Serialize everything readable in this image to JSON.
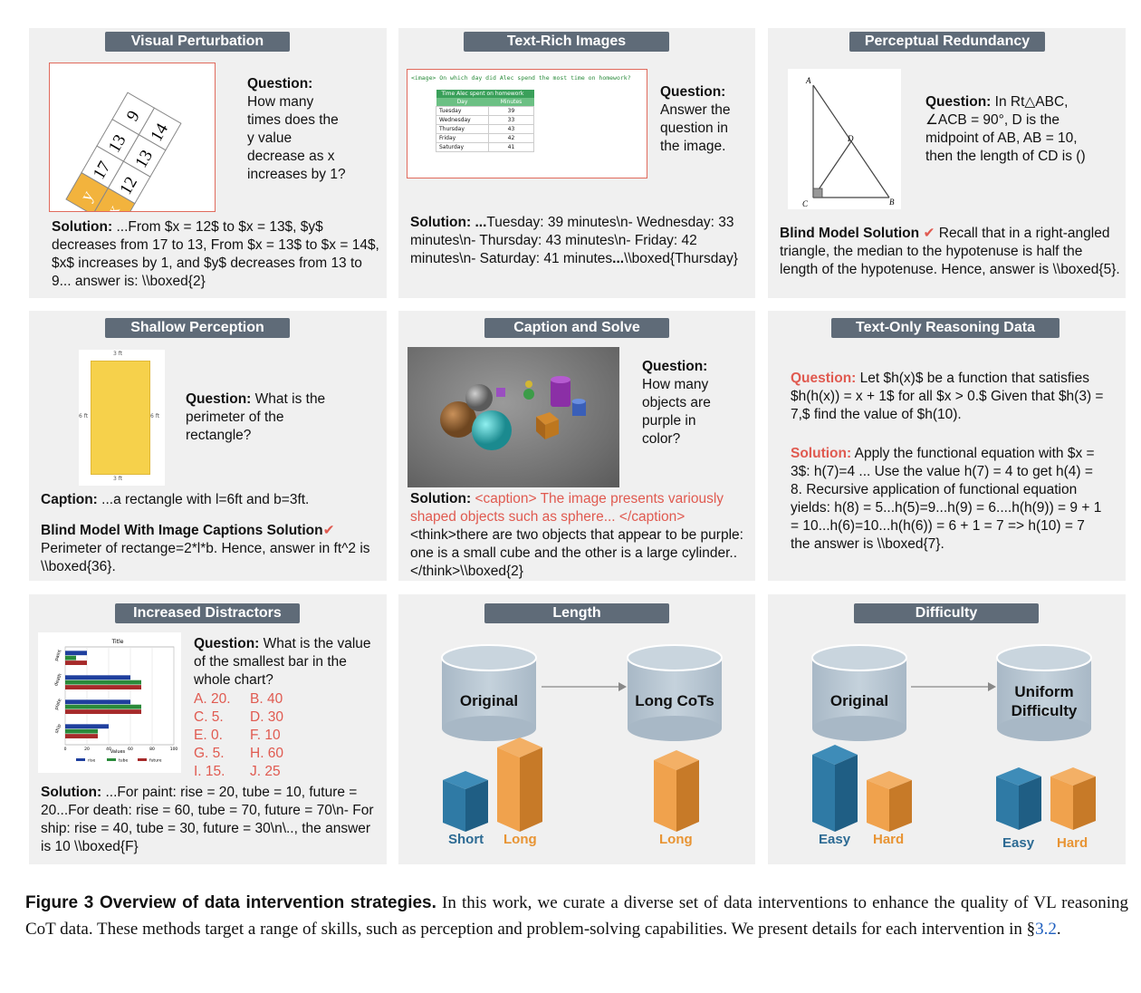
{
  "panels": {
    "visual_perturbation": {
      "title": "Visual Perturbation",
      "question_label": "Question:",
      "question_text": "How many times does the y value decrease as x increases by 1?",
      "solution_label": "Solution:",
      "solution_text": " ...From $x = 12$ to $x = 13$, $y$ decreases from 17 to 13, From $x = 13$ to $x = 14$, $x$ increases by 1, and $y$ decreases from 13 to 9... answer is: \\\\boxed{2}",
      "table": {
        "row_x": [
          "x",
          "12",
          "13",
          "14"
        ],
        "row_y": [
          "y",
          "17",
          "13",
          "9"
        ]
      }
    },
    "text_rich": {
      "title": "Text-Rich Images",
      "image_prompt": "<image> On which day did Alec spend the most time on homework?",
      "image_table_title": "Time Alec spent on homework",
      "image_table_headers": [
        "Day",
        "Minutes"
      ],
      "image_table_rows": [
        [
          "Tuesday",
          "39"
        ],
        [
          "Wednesday",
          "33"
        ],
        [
          "Thursday",
          "43"
        ],
        [
          "Friday",
          "42"
        ],
        [
          "Saturday",
          "41"
        ]
      ],
      "question_label": "Question:",
      "question_text": "Answer the question in the image.",
      "solution_label": "Solution: ...",
      "solution_text": "Tuesday: 39 minutes\\n- Wednesday: 33 minutes\\n- Thursday: 43 minutes\\n- Friday: 42 minutes\\n- Saturday: 41 minutes",
      "solution_tail_bold": "...",
      "solution_tail": "\\\\boxed{Thursday}"
    },
    "perceptual_redundancy": {
      "title": "Perceptual Redundancy",
      "question_label": "Question:",
      "question_text": " In Rt△ABC, ∠ACB = 90°, D is the midpoint of AB, AB = 10, then the length of CD is ()",
      "points": [
        "A",
        "C",
        "B",
        "D"
      ],
      "solution_label": "Blind Model Solution",
      "check": "✔",
      "solution_text": " Recall that in a right-angled triangle, the median to the hypotenuse is half the length of the hypotenuse. Hence, answer is \\\\boxed{5}."
    },
    "shallow_perception": {
      "title": "Shallow Perception",
      "dims": {
        "top": "3 ft",
        "left": "6 ft",
        "right": "6 ft",
        "bottom": "3 ft"
      },
      "question_label": "Question:",
      "question_text": " What is the perimeter of the rectangle?",
      "caption_label": "Caption:",
      "caption_text": " ...a rectangle with l=6ft and b=3ft.",
      "solution_label": "Blind Model With Image Captions Solution",
      "check": "✔",
      "solution_text": " Perimeter of rectange=2*l*b. Hence, answer in ft^2 is \\\\boxed{36}."
    },
    "caption_solve": {
      "title": "Caption and Solve",
      "question_label": "Question:",
      "question_text": "How many objects are purple in color?",
      "solution_label": "Solution:",
      "caption_red": " <caption> The image presents variously shaped objects such as sphere... </caption>",
      "solution_text": " <think>there are two objects that appear to be purple: one is a small cube and the other is a large cylinder..</think>\\\\boxed{2}"
    },
    "text_only": {
      "title": "Text-Only Reasoning Data",
      "question_label": "Question:",
      "question_text": " Let $h(x)$ be a function that satisfies $h(h(x)) = x + 1$ for all $x > 0.$ Given that $h(3) = 7,$ find the value of $h(10).",
      "solution_label": "Solution:",
      "solution_text": " Apply the functional equation with $x = 3$: h(7)=4 ... Use the value h(7) = 4 to get h(4) = 8. Recursive application of functional equation yields: h(8) = 5...h(5)=9...h(9) = 6....h(h(9)) = 9 + 1 = 10...h(6)=10...h(h(6)) = 6 + 1 = 7 => h(10) = 7 the answer is \\\\boxed{7}."
    },
    "distractors": {
      "title": "Increased Distractors",
      "question_label": "Question:",
      "question_text": " What is the value of the smallest bar in the whole chart?",
      "options": [
        [
          "A. 20.",
          "B. 40"
        ],
        [
          "C. 5.",
          "D. 30"
        ],
        [
          "E. 0.",
          "F. 10"
        ],
        [
          "G. 5.",
          "H. 60"
        ],
        [
          "I. 15.",
          "J. 25"
        ]
      ],
      "solution_label": "Solution:",
      "solution_text": " ...For paint: rise = 20, tube = 10, future = 20...For death: rise = 60, tube = 70, future = 70\\n- For ship: rise = 40, tube = 30, future = 30\\n\\.., the answer is 10 \\\\boxed{F}"
    },
    "length": {
      "title": "Length",
      "left_label": "Original",
      "right_label": "Long CoTs",
      "short": "Short",
      "long": "Long",
      "long_right": "Long"
    },
    "difficulty": {
      "title": "Difficulty",
      "left_label": "Original",
      "right_label_1": "Uniform",
      "right_label_2": "Difficulty",
      "easy": "Easy",
      "hard": "Hard",
      "easy_right": "Easy",
      "hard_right": "Hard"
    }
  },
  "mini_chart": {
    "chart_data": {
      "type": "bar",
      "title": "Title",
      "xlabel": "Values",
      "categories": [
        "paint",
        "death",
        "plate",
        "ship"
      ],
      "series": [
        {
          "name": "rise",
          "values": [
            20,
            60,
            60,
            40
          ]
        },
        {
          "name": "tube",
          "values": [
            10,
            70,
            70,
            30
          ]
        },
        {
          "name": "future",
          "values": [
            20,
            70,
            70,
            30
          ]
        }
      ],
      "xlim": [
        0,
        100
      ],
      "xticks": [
        "0",
        "20",
        "40",
        "60",
        "80",
        "100"
      ],
      "colors": {
        "rise": "#1f3f9e",
        "tube": "#2a8a3a",
        "future": "#a62a2a"
      }
    }
  },
  "caption": {
    "fig": "Figure 3  Overview of data intervention strategies.",
    "text": " In this work, we curate a diverse set of data interventions to enhance the quality of VL reasoning CoT data. These methods target a range of skills, such as perception and problem-solving capabilities. We present details for each intervention in §",
    "link": "3.2",
    "end": "."
  }
}
